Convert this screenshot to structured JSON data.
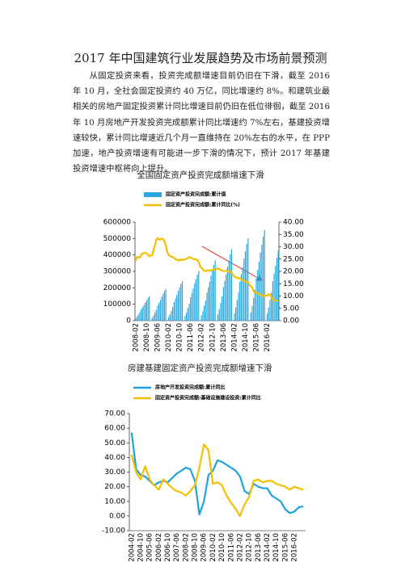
{
  "document": {
    "title": "2017 年中国建筑行业发展趋势及市场前景预测",
    "paragraph": "从固定投资来看，投资完成额增速目前仍旧在下滑，截至 2016 年 10 月，全社会固定投资约 40 万亿，同比增速约 8%。和建筑业最相关的房地产固定投资累计同比增速目前仍旧在低位徘徊，截至 2016 年 10 月房地产开发投资完成额累计同比增速约 7%左右，基建投资增速较快，累计同比增速近几个月一直维持在 20%左右的水平，在 PPP 加速，地产投资增速有可能进一步下滑的情况下，预计 2017 年基建投资增速中枢将向上提升。",
    "captions": [
      "全国固定资产投资完成额增速下滑",
      "房建基建固定资产投资完成额增速下滑"
    ]
  },
  "chart_data": [
    {
      "type": "bar-line",
      "categories": [
        "2008-02",
        null,
        null,
        null,
        null,
        null,
        null,
        null,
        "2008-10",
        null,
        null,
        null,
        null,
        null,
        null,
        null,
        "2009-06",
        null,
        null,
        null,
        null,
        null,
        null,
        null,
        "2010-02",
        null,
        null,
        null,
        null,
        null,
        null,
        null,
        "2010-10",
        null,
        null,
        null,
        null,
        null,
        null,
        null,
        "2011-06",
        null,
        null,
        null,
        null,
        null,
        null,
        null,
        "2012-02",
        null,
        null,
        null,
        null,
        null,
        null,
        null,
        "2012-10",
        null,
        null,
        null,
        null,
        null,
        null,
        null,
        "2013-06",
        null,
        null,
        null,
        null,
        null,
        null,
        null,
        "2014-02",
        null,
        null,
        null,
        null,
        null,
        null,
        null,
        "2014-10",
        null,
        null,
        null,
        null,
        null,
        null,
        null,
        "2015-06",
        null,
        null,
        null,
        null,
        null,
        null,
        null,
        "2016-02",
        null,
        null,
        null,
        null,
        null,
        null,
        null,
        null
      ],
      "series": [
        {
          "name": "固定资产投资完成额:累计值",
          "color": "#29a8e0",
          "type": "bar",
          "values": [
            13000,
            24000,
            37000,
            50000,
            70000,
            83000,
            96000,
            111000,
            124000,
            138000,
            148000,
            null,
            17000,
            31000,
            49000,
            66000,
            91000,
            109000,
            126000,
            146000,
            163000,
            180000,
            194000,
            null,
            22000,
            39000,
            60000,
            82000,
            113000,
            135000,
            157000,
            181000,
            202000,
            224000,
            241000,
            null,
            27000,
            48000,
            76000,
            103000,
            142000,
            169000,
            196000,
            227000,
            254000,
            281000,
            302000,
            null,
            33000,
            58000,
            91000,
            124000,
            172000,
            204000,
            237000,
            274000,
            307000,
            339000,
            365000,
            null,
            39000,
            70000,
            109000,
            148000,
            205000,
            244000,
            283000,
            327000,
            366000,
            405000,
            436000,
            null,
            45000,
            80000,
            126000,
            171000,
            236000,
            281000,
            326000,
            377000,
            422000,
            467000,
            502000,
            null,
            50000,
            88000,
            138000,
            188000,
            259000,
            309000,
            359000,
            414000,
            464000,
            513000,
            552000,
            null,
            46000,
            80000,
            127000,
            172000,
            240000,
            286000,
            332000,
            383000,
            426000
          ]
        },
        {
          "name": "固定资产投资完成额:累计同比(%)",
          "color": "#f5bf00",
          "type": "line",
          "axis": "y2",
          "values": [
            24.3,
            25.9,
            25.7,
            25.6,
            26.8,
            27.3,
            27.4,
            27.6,
            27.2,
            26.8,
            26.1,
            26.5,
            26.5,
            28.8,
            30.5,
            32.9,
            33.6,
            32.9,
            33.0,
            33.3,
            33.1,
            32.1,
            30.5,
            28,
            26.6,
            26.4,
            25.8,
            25.9,
            25.5,
            24.9,
            24.8,
            24.5,
            24.4,
            24.9,
            24.5,
            24.9,
            24.9,
            25.0,
            25.4,
            25.8,
            25.6,
            25.4,
            25.0,
            24.9,
            24.9,
            24.5,
            23.8,
            22,
            21.5,
            20.9,
            20.2,
            20.1,
            20.4,
            20.4,
            20.2,
            20.5,
            20.7,
            20.7,
            20.6,
            21,
            21.2,
            20.9,
            20.6,
            20.4,
            20.1,
            20.1,
            20.3,
            20.2,
            20.1,
            19.9,
            19.6,
            18.5,
            17.9,
            17.6,
            17.3,
            17.2,
            17.3,
            17.0,
            16.5,
            16.1,
            15.9,
            15.8,
            15.7,
            14.5,
            13.9,
            13.5,
            12.0,
            11.4,
            11.4,
            11.2,
            10.9,
            10.3,
            10.2,
            10.2,
            10.0,
            10.2,
            10.2,
            10.7,
            10.5,
            9.6,
            9.0,
            8.1,
            8.1,
            8.2,
            8.3
          ]
        }
      ],
      "ylim": [
        0,
        600000
      ],
      "yticks": [
        0,
        100000,
        200000,
        300000,
        400000,
        500000,
        600000
      ],
      "y2lim": [
        0,
        40
      ],
      "y2ticks": [
        {
          "value": 0,
          "label": "0.00"
        },
        {
          "value": 5,
          "label": "5.00"
        },
        {
          "value": 10,
          "label": "10.00"
        },
        {
          "value": 15,
          "label": "15.00"
        },
        {
          "value": 20,
          "label": "20.00"
        },
        {
          "value": 25,
          "label": "25.00"
        },
        {
          "value": 30,
          "label": "30.00"
        },
        {
          "value": 35,
          "label": "35.00"
        },
        {
          "value": 40,
          "label": "40.00"
        }
      ]
    },
    {
      "type": "line",
      "categories": [
        "2004-02",
        null,
        "2004-10",
        null,
        "2005-06",
        null,
        "2006-02",
        null,
        "2006-10",
        null,
        "2007-06",
        null,
        "2008-02",
        null,
        "2008-10",
        null,
        "2009-06",
        null,
        "2010-02",
        null,
        "2010-10",
        null,
        "2011-06",
        null,
        "2012-02",
        null,
        "2012-10",
        null,
        "2013-06",
        null,
        "2014-02",
        null,
        "2014-10",
        null,
        "2015-06",
        null,
        "2016-02",
        null,
        null
      ],
      "series": [
        {
          "name": "房地产开发投资完成额:累计同比",
          "color": "#1ea3dc",
          "values": [
            57,
            32,
            28,
            27,
            24,
            21,
            23,
            24,
            23,
            26,
            29,
            31,
            33,
            32,
            24,
            1,
            10,
            28,
            31,
            38,
            37,
            35,
            33,
            31,
            27,
            17,
            15,
            22,
            20,
            19,
            19,
            14,
            12,
            10,
            4.6,
            2,
            3,
            6,
            6.6
          ]
        },
        {
          "name": "固定资产投资完成额:基础设施建设投资:累计同比",
          "color": "#f5bf00",
          "values": [
            42,
            30,
            25,
            34,
            25,
            21,
            18,
            25,
            22,
            19,
            17,
            16,
            14,
            17,
            21,
            33,
            49,
            45,
            22,
            23,
            21,
            14,
            9,
            5,
            0,
            8,
            13,
            24,
            25,
            23,
            24,
            24,
            22,
            21,
            20,
            18,
            20,
            19,
            18
          ]
        }
      ],
      "ylim": [
        -10,
        70
      ],
      "yticks": [
        {
          "value": -10,
          "label": "-10.00"
        },
        {
          "value": 0,
          "label": "0.00"
        },
        {
          "value": 10,
          "label": "10.00"
        },
        {
          "value": 20,
          "label": "20.00"
        },
        {
          "value": 30,
          "label": "30.00"
        },
        {
          "value": 40,
          "label": "40.00"
        },
        {
          "value": 50,
          "label": "50.00"
        },
        {
          "value": 60,
          "label": "60.00"
        },
        {
          "value": 70,
          "label": "70.00"
        }
      ]
    }
  ]
}
